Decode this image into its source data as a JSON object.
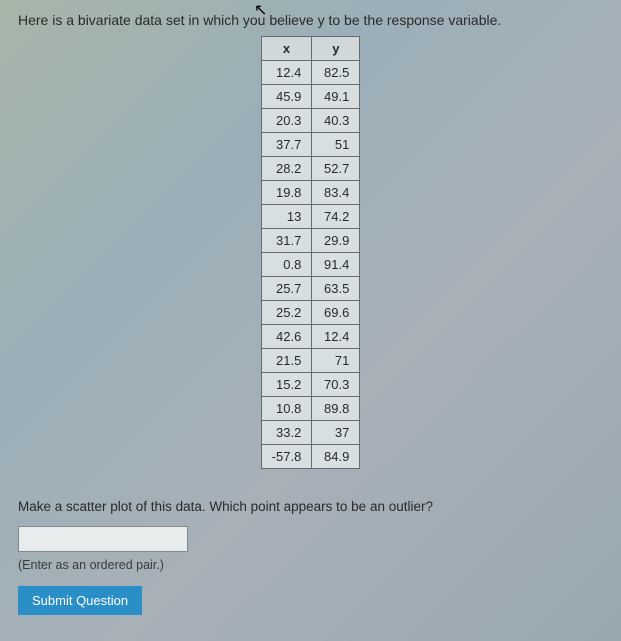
{
  "intro": "Here is a bivariate data set in which you believe y to be the response variable.",
  "table": {
    "columns": [
      "x",
      "y"
    ],
    "rows": [
      [
        "12.4",
        "82.5"
      ],
      [
        "45.9",
        "49.1"
      ],
      [
        "20.3",
        "40.3"
      ],
      [
        "37.7",
        "51"
      ],
      [
        "28.2",
        "52.7"
      ],
      [
        "19.8",
        "83.4"
      ],
      [
        "13",
        "74.2"
      ],
      [
        "31.7",
        "29.9"
      ],
      [
        "0.8",
        "91.4"
      ],
      [
        "25.7",
        "63.5"
      ],
      [
        "25.2",
        "69.6"
      ],
      [
        "42.6",
        "12.4"
      ],
      [
        "21.5",
        "71"
      ],
      [
        "15.2",
        "70.3"
      ],
      [
        "10.8",
        "89.8"
      ],
      [
        "33.2",
        "37"
      ],
      [
        "-57.8",
        "84.9"
      ]
    ],
    "header_bg": "#d0d8da",
    "cell_bg": "#d8dfe0",
    "border_color": "#6a6a6a",
    "font_size": 13
  },
  "question": "Make a scatter plot of this data. Which point appears to be an outlier?",
  "answer_value": "",
  "hint": "(Enter as an ordered pair.)",
  "submit_label": "Submit Question",
  "colors": {
    "background_gradient": [
      "#a8b5a8",
      "#9aafb8",
      "#a8b0b8",
      "#98a8b0"
    ],
    "text": "#2a2a2a",
    "button_bg": "#2b8fc7",
    "button_text": "#ffffff",
    "input_bg": "#e8ecec",
    "input_border": "#888888"
  }
}
